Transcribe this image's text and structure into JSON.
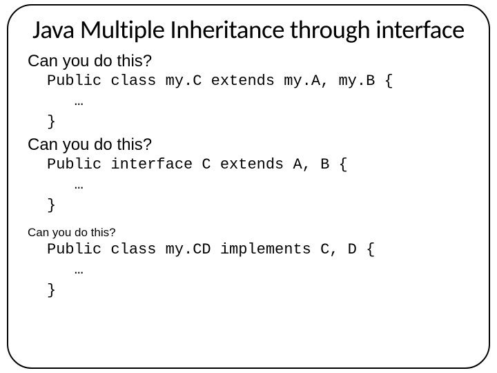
{
  "slide": {
    "title": "Java Multiple Inheritance through interface",
    "title_fontsize": 37,
    "title_color": "#000000",
    "frame_border_color": "#000000",
    "frame_border_radius": 36,
    "background_color": "#ffffff",
    "sections": [
      {
        "question": "Can you do this?",
        "question_fontsize": 24,
        "code": "Public class my.C extends my.A, my.B {\n   …\n}",
        "code_fontsize": 22,
        "code_font": "Courier New"
      },
      {
        "question": "Can you do this?",
        "question_fontsize": 24,
        "code": "Public interface C extends A, B {\n   …\n}",
        "code_fontsize": 22,
        "code_font": "Courier New"
      },
      {
        "question": "Can you do this?",
        "question_fontsize": 17,
        "code": "Public class my.CD implements C, D {\n   …\n}",
        "code_fontsize": 22,
        "code_font": "Courier New"
      }
    ]
  }
}
